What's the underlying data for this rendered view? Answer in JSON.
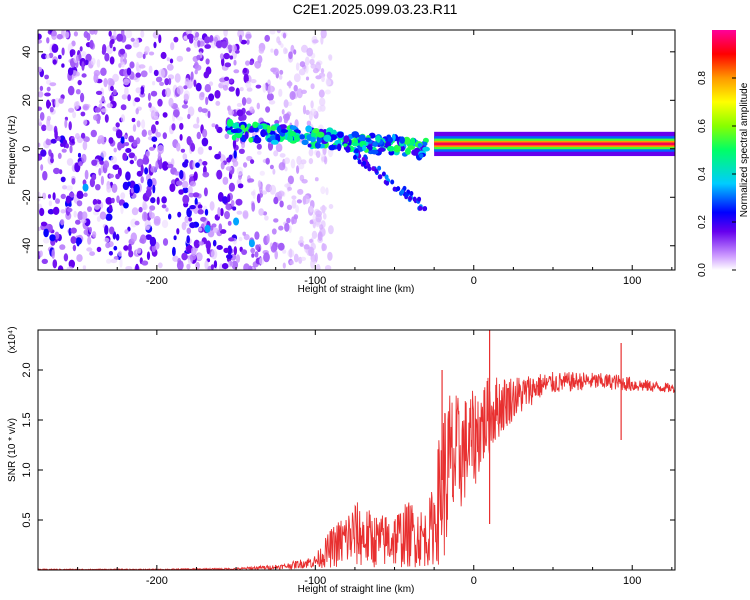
{
  "title": "C2E1.2025.099.03.23.R11",
  "chart_data": [
    {
      "type": "heatmap",
      "xlabel": "Height of straight line (km)",
      "ylabel": "Frequency (Hz)",
      "xlim": [
        -275,
        127
      ],
      "ylim": [
        -50,
        49
      ],
      "xticks": [
        -200,
        -100,
        0,
        100
      ],
      "yticks": [
        -40,
        -20,
        0,
        20,
        40
      ],
      "grid": false,
      "colorbar": {
        "label": "Normalized spectral amplitude",
        "range": [
          0,
          1
        ],
        "ticks": [
          0.0,
          0.2,
          0.4,
          0.6,
          0.8
        ],
        "colormap": [
          "#ffffff",
          "#cc99ff",
          "#6600ee",
          "#0000ff",
          "#00ccff",
          "#00ff66",
          "#88ff00",
          "#ffff00",
          "#ff9900",
          "#ff0000",
          "#ff0099"
        ]
      },
      "features": {
        "noise_region_x": [
          -275,
          -90
        ],
        "streak": {
          "x": [
            -155,
            -30
          ],
          "freq_start": 8,
          "freq_end": 0
        },
        "branch": {
          "x": [
            -75,
            -30
          ],
          "freq_start": -2,
          "freq_end": -25
        },
        "carrier_line": {
          "x": [
            -25,
            127
          ],
          "freq": 2,
          "amplitude": 0.95
        }
      }
    },
    {
      "type": "line",
      "xlabel": "Height of straight line (km)",
      "ylabel": "SNR (10 * v/v)",
      "y_multiplier": "(x10⁴)",
      "xlim": [
        -275,
        127
      ],
      "ylim": [
        0,
        2.4
      ],
      "xticks": [
        -200,
        -100,
        0,
        100
      ],
      "yticks": [
        0.5,
        1.0,
        1.5,
        2.0
      ],
      "color": "#e83030",
      "series": [
        {
          "x": [
            -275,
            -200,
            -150,
            -120,
            -100,
            -90,
            -75,
            -60,
            -50,
            -40,
            -30,
            -25,
            -20,
            -15,
            -10,
            -5,
            0,
            5,
            10,
            15,
            20,
            25,
            30,
            40,
            50,
            60,
            70,
            80,
            90,
            100,
            110,
            127
          ],
          "values": [
            0.0,
            0.0,
            0.01,
            0.04,
            0.08,
            0.2,
            0.35,
            0.3,
            0.3,
            0.35,
            0.35,
            0.5,
            0.9,
            1.1,
            1.2,
            1.25,
            1.35,
            1.45,
            1.55,
            1.6,
            1.65,
            1.7,
            1.75,
            1.82,
            1.86,
            1.87,
            1.88,
            1.88,
            1.87,
            1.85,
            1.84,
            1.81
          ],
          "envelope_upper": [
            0.01,
            0.01,
            0.02,
            0.06,
            0.15,
            0.42,
            0.7,
            0.55,
            0.6,
            0.7,
            0.6,
            0.9,
            1.65,
            1.85,
            1.75,
            1.75,
            1.8,
            1.9,
            1.95,
            1.95,
            1.95,
            1.95,
            1.95,
            1.97,
            1.98,
            1.98,
            1.98,
            1.97,
            1.96,
            1.93,
            1.9,
            1.86
          ],
          "envelope_lower": [
            0.0,
            0.0,
            0.0,
            0.01,
            0.02,
            0.02,
            0.02,
            0.02,
            0.02,
            0.02,
            0.03,
            0.05,
            0.05,
            0.2,
            0.5,
            0.7,
            0.8,
            1.0,
            1.15,
            1.3,
            1.4,
            1.5,
            1.55,
            1.7,
            1.76,
            1.78,
            1.8,
            1.8,
            1.8,
            1.78,
            1.78,
            1.77
          ],
          "spikes": [
            {
              "x": -20,
              "value": 2.0
            },
            {
              "x": 10,
              "value": 2.4
            },
            {
              "x": 10,
              "value": 0.46
            },
            {
              "x": 93,
              "value": 2.27
            },
            {
              "x": 93,
              "value": 1.3
            }
          ]
        }
      ]
    }
  ]
}
